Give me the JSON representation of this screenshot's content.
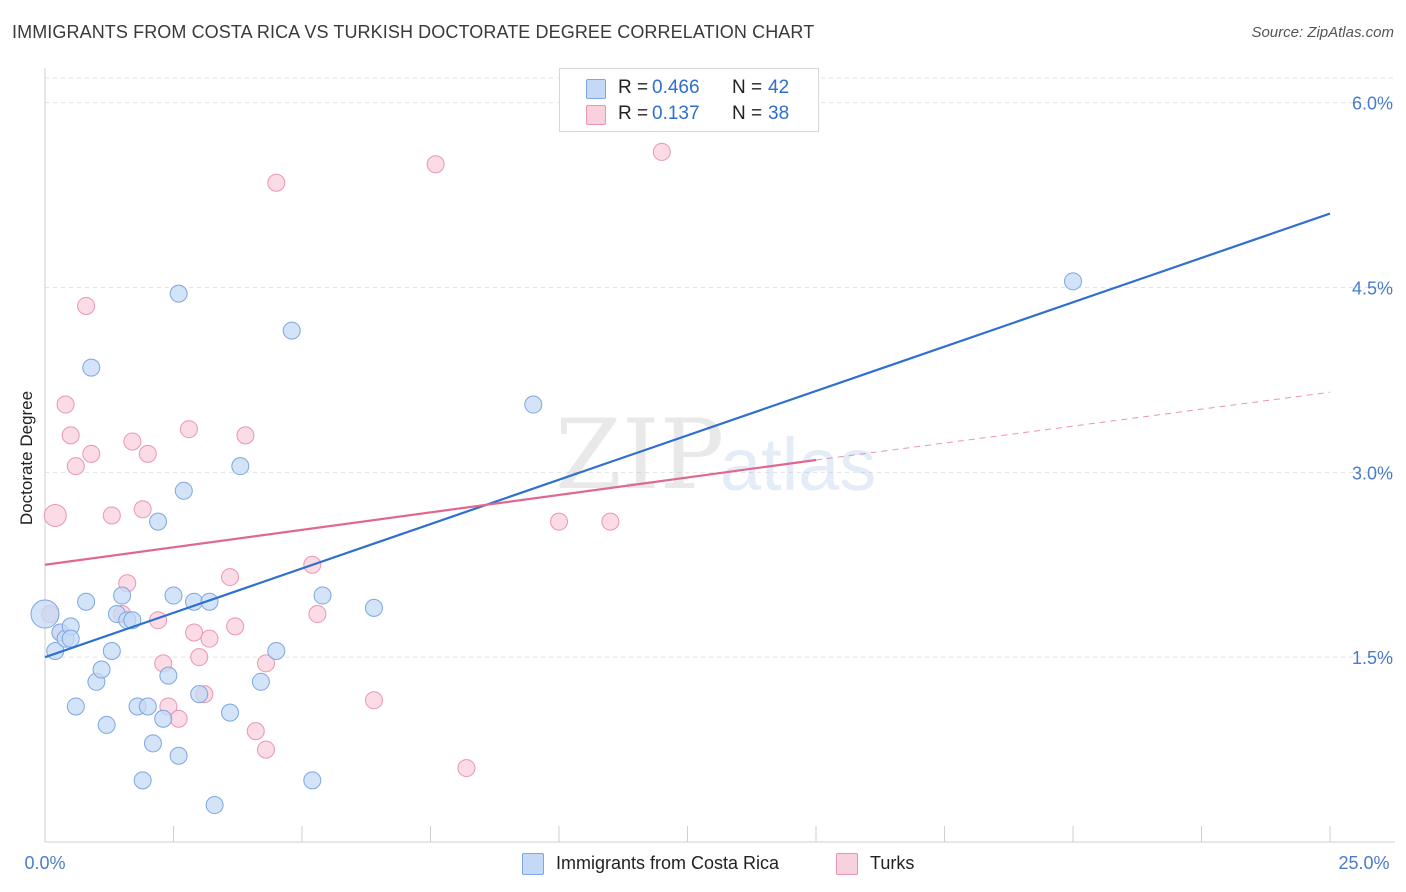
{
  "title": "IMMIGRANTS FROM COSTA RICA VS TURKISH DOCTORATE DEGREE CORRELATION CHART",
  "source": "Source: ZipAtlas.com",
  "watermark": {
    "zip": "ZIP",
    "atlas": "atlas"
  },
  "legend": {
    "rows": [
      {
        "r_label": "R =",
        "r_value": "0.466",
        "n_label": "N =",
        "n_value": "42",
        "color": "#b8d0f3",
        "border": "#7ea6e0"
      },
      {
        "r_label": "R =",
        "r_value": "0.137",
        "n_label": "N =",
        "n_value": "38",
        "color": "#f8c6d6",
        "border": "#e996b2"
      }
    ]
  },
  "colors": {
    "blue_fill": "#c4d9f5",
    "blue_stroke": "#7ea6e0",
    "blue_line": "#2f6fd0",
    "pink_fill": "#f9d0dd",
    "pink_stroke": "#e996b2",
    "pink_line": "#e0688f",
    "grid": "#e3e3e3",
    "axis_label": "#4a7cc9"
  },
  "chart_data": {
    "type": "scatter",
    "title": "IMMIGRANTS FROM COSTA RICA VS TURKISH DOCTORATE DEGREE CORRELATION CHART",
    "xlabel": "",
    "ylabel": "Doctorate Degree",
    "xlim": [
      0,
      25
    ],
    "ylim": [
      0,
      6.2
    ],
    "x_tick_labels": [
      "0.0%",
      "25.0%"
    ],
    "y_ticks": [
      1.5,
      3.0,
      4.5,
      6.0
    ],
    "y_tick_labels": [
      "1.5%",
      "3.0%",
      "4.5%",
      "6.0%"
    ],
    "grid": true,
    "legend_position": "top-center",
    "series": [
      {
        "name": "Immigrants from Costa Rica",
        "color": "#7ea6e0",
        "points": [
          [
            0.0,
            1.85
          ],
          [
            0.2,
            1.55
          ],
          [
            0.3,
            1.7
          ],
          [
            0.4,
            1.65
          ],
          [
            0.5,
            1.75
          ],
          [
            0.5,
            1.65
          ],
          [
            0.6,
            1.1
          ],
          [
            0.8,
            1.95
          ],
          [
            0.9,
            3.85
          ],
          [
            1.0,
            1.3
          ],
          [
            1.1,
            1.4
          ],
          [
            1.2,
            0.95
          ],
          [
            1.3,
            1.55
          ],
          [
            1.4,
            1.85
          ],
          [
            1.5,
            2.0
          ],
          [
            1.6,
            1.8
          ],
          [
            1.7,
            1.8
          ],
          [
            1.8,
            1.1
          ],
          [
            1.9,
            0.5
          ],
          [
            2.0,
            1.1
          ],
          [
            2.1,
            0.8
          ],
          [
            2.2,
            2.6
          ],
          [
            2.3,
            1.0
          ],
          [
            2.4,
            1.35
          ],
          [
            2.5,
            2.0
          ],
          [
            2.6,
            0.7
          ],
          [
            2.6,
            4.45
          ],
          [
            2.7,
            2.85
          ],
          [
            2.9,
            1.95
          ],
          [
            3.0,
            1.2
          ],
          [
            3.2,
            1.95
          ],
          [
            3.3,
            0.3
          ],
          [
            3.6,
            1.05
          ],
          [
            3.8,
            3.05
          ],
          [
            4.2,
            1.3
          ],
          [
            4.5,
            1.55
          ],
          [
            4.8,
            4.15
          ],
          [
            5.2,
            0.5
          ],
          [
            5.4,
            2.0
          ],
          [
            6.4,
            1.9
          ],
          [
            9.5,
            3.55
          ],
          [
            20.0,
            4.55
          ]
        ]
      },
      {
        "name": "Turks",
        "color": "#e996b2",
        "points": [
          [
            0.1,
            1.85
          ],
          [
            0.2,
            2.65
          ],
          [
            0.3,
            1.7
          ],
          [
            0.4,
            3.55
          ],
          [
            0.5,
            3.3
          ],
          [
            0.6,
            3.05
          ],
          [
            0.8,
            4.35
          ],
          [
            0.9,
            3.15
          ],
          [
            1.3,
            2.65
          ],
          [
            1.5,
            1.85
          ],
          [
            1.6,
            2.1
          ],
          [
            1.7,
            3.25
          ],
          [
            1.9,
            2.7
          ],
          [
            2.0,
            3.15
          ],
          [
            2.2,
            1.8
          ],
          [
            2.3,
            1.45
          ],
          [
            2.4,
            1.1
          ],
          [
            2.6,
            1.0
          ],
          [
            2.8,
            3.35
          ],
          [
            2.9,
            1.7
          ],
          [
            3.0,
            1.5
          ],
          [
            3.1,
            1.2
          ],
          [
            3.2,
            1.65
          ],
          [
            3.6,
            2.15
          ],
          [
            3.7,
            1.75
          ],
          [
            3.9,
            3.3
          ],
          [
            4.1,
            0.9
          ],
          [
            4.3,
            1.45
          ],
          [
            4.3,
            0.75
          ],
          [
            4.5,
            5.35
          ],
          [
            5.2,
            2.25
          ],
          [
            5.3,
            1.85
          ],
          [
            6.4,
            1.15
          ],
          [
            7.6,
            5.5
          ],
          [
            8.2,
            0.6
          ],
          [
            10.0,
            2.6
          ],
          [
            11.0,
            2.6
          ],
          [
            12.0,
            5.6
          ]
        ]
      }
    ],
    "trend_lines": [
      {
        "series": "Immigrants from Costa Rica",
        "x0": 0,
        "y0": 1.5,
        "x1": 25,
        "y1": 5.1,
        "dashed_from": null
      },
      {
        "series": "Turks",
        "x0": 0,
        "y0": 2.25,
        "x1": 15,
        "y1": 3.1,
        "dashed_to_x": 25,
        "dashed_to_y": 3.65
      }
    ]
  },
  "bottom_legend": [
    {
      "label": "Immigrants from Costa Rica"
    },
    {
      "label": "Turks"
    }
  ]
}
